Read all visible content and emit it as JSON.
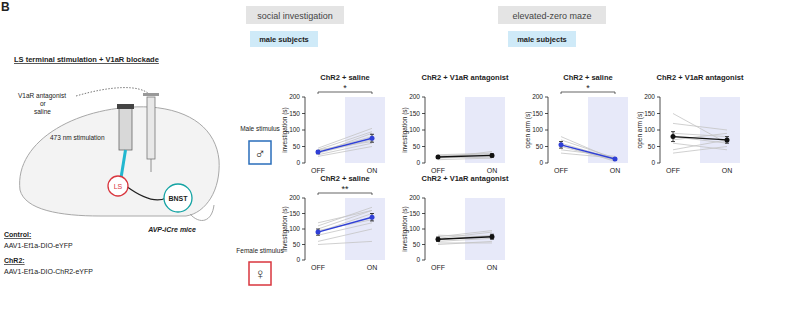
{
  "figure_label": "B",
  "headers": {
    "social": "social investigation",
    "ezm": "elevated-zero maze",
    "subjects_social": "male subjects",
    "subjects_ezm": "male subjects"
  },
  "rows": {
    "male": {
      "label": "Male stimulus",
      "symbol": "♂"
    },
    "female": {
      "label": "Female stimulus",
      "symbol": "♀"
    }
  },
  "schematic": {
    "title": "LS terminal stimulation + V1aR blockade",
    "drug": [
      "V1aR antagonist",
      "or",
      "saline"
    ],
    "light": "473 nm stimulation",
    "region1": "LS",
    "region2": "BNST",
    "mice": "AVP-iCre mice",
    "control_label": "Control:",
    "control_virus": "AAV1-Ef1a-DIO-eYFP",
    "chr2_label": "ChR2:",
    "chr2_virus": "AAV1-Ef1a-DIO-ChR2-eYFP"
  },
  "chart_data": [
    {
      "type": "line",
      "title": "ChR2 + saline",
      "categories": [
        "OFF",
        "ON"
      ],
      "values": [
        33,
        75
      ],
      "errors": [
        5,
        12
      ],
      "color": "#2f3fd6",
      "marker": "circle",
      "subjects": [
        [
          20,
          50
        ],
        [
          25,
          60
        ],
        [
          30,
          70
        ],
        [
          35,
          80
        ],
        [
          40,
          95
        ],
        [
          45,
          105
        ],
        [
          30,
          90
        ],
        [
          40,
          65
        ]
      ],
      "ylabel": "investigation (s)",
      "ylim": [
        0,
        200
      ],
      "yticks": [
        0,
        50,
        100,
        150,
        200
      ],
      "annotation": "*"
    },
    {
      "type": "line",
      "title": "ChR2 + V1aR antagonist",
      "categories": [
        "OFF",
        "ON"
      ],
      "values": [
        18,
        23
      ],
      "errors": [
        3,
        5
      ],
      "color": "#111111",
      "marker": "circle",
      "subjects": [
        [
          10,
          15
        ],
        [
          15,
          20
        ],
        [
          20,
          25
        ],
        [
          25,
          30
        ],
        [
          15,
          35
        ],
        [
          20,
          15
        ],
        [
          22,
          28
        ]
      ],
      "ylabel": "investigation (s)",
      "ylim": [
        0,
        200
      ],
      "yticks": [
        0,
        50,
        100,
        150,
        200
      ]
    },
    {
      "type": "line",
      "title": "ChR2 + saline",
      "categories": [
        "OFF",
        "ON"
      ],
      "values": [
        90,
        138
      ],
      "errors": [
        10,
        12
      ],
      "color": "#2f3fd6",
      "marker": "circle",
      "subjects": [
        [
          60,
          100
        ],
        [
          80,
          120
        ],
        [
          90,
          150
        ],
        [
          100,
          160
        ],
        [
          110,
          170
        ],
        [
          95,
          130
        ],
        [
          50,
          60
        ],
        [
          120,
          160
        ]
      ],
      "ylabel": "investigation (s)",
      "ylim": [
        0,
        200
      ],
      "yticks": [
        0,
        50,
        100,
        150,
        200
      ],
      "annotation": "**"
    },
    {
      "type": "line",
      "title": "ChR2 + V1aR antagonist",
      "categories": [
        "OFF",
        "ON"
      ],
      "values": [
        67,
        75
      ],
      "errors": [
        7,
        8
      ],
      "color": "#111111",
      "marker": "circle",
      "subjects": [
        [
          50,
          60
        ],
        [
          60,
          70
        ],
        [
          70,
          90
        ],
        [
          80,
          75
        ],
        [
          65,
          80
        ],
        [
          75,
          95
        ],
        [
          55,
          55
        ]
      ],
      "ylabel": "investigation (s)",
      "ylim": [
        0,
        200
      ],
      "yticks": [
        0,
        50,
        100,
        150,
        200
      ]
    },
    {
      "type": "line",
      "title": "ChR2 + saline",
      "categories": [
        "OFF",
        "ON"
      ],
      "values": [
        55,
        12
      ],
      "errors": [
        10,
        3
      ],
      "color": "#2f3fd6",
      "marker": "circle",
      "subjects": [
        [
          80,
          10
        ],
        [
          70,
          15
        ],
        [
          60,
          12
        ],
        [
          50,
          8
        ],
        [
          40,
          20
        ],
        [
          55,
          5
        ],
        [
          30,
          15
        ]
      ],
      "ylabel": "open arm (s)",
      "ylim": [
        0,
        200
      ],
      "yticks": [
        0,
        50,
        100,
        150,
        200
      ],
      "annotation": "*"
    },
    {
      "type": "line",
      "title": "ChR2 + V1aR antagonist",
      "categories": [
        "OFF",
        "ON"
      ],
      "values": [
        80,
        70
      ],
      "errors": [
        15,
        10
      ],
      "color": "#111111",
      "marker": "circle",
      "subjects": [
        [
          150,
          60
        ],
        [
          120,
          100
        ],
        [
          90,
          80
        ],
        [
          70,
          90
        ],
        [
          60,
          40
        ],
        [
          40,
          70
        ],
        [
          30,
          50
        ],
        [
          80,
          60
        ]
      ],
      "ylabel": "open arm (s)",
      "ylim": [
        0,
        200
      ],
      "yticks": [
        0,
        50,
        100,
        150,
        200
      ]
    }
  ]
}
